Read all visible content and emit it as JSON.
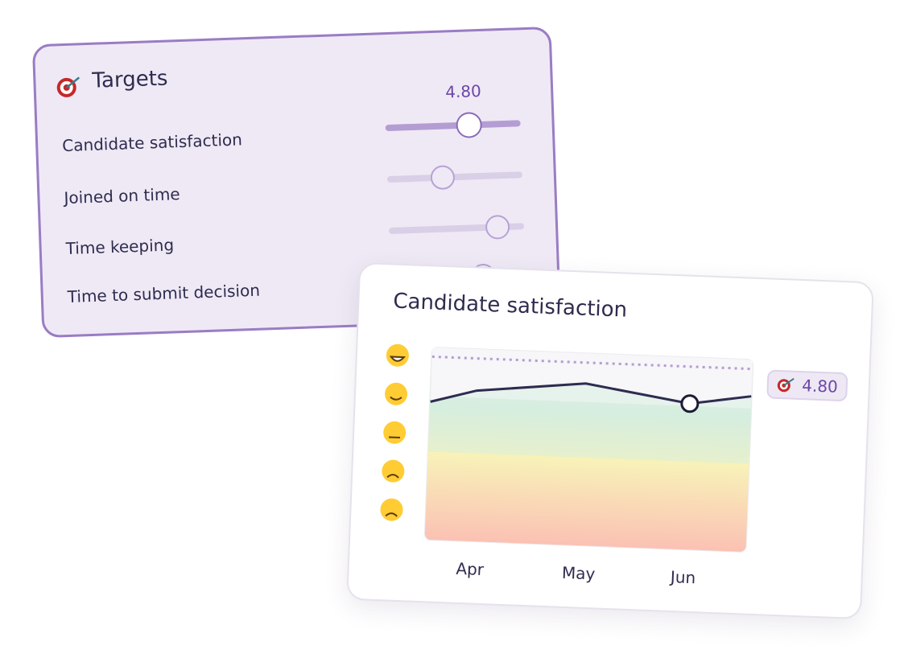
{
  "targets_card": {
    "title": "Targets",
    "slider_value": "4.80",
    "items": [
      "Candidate satisfaction",
      "Joined on time",
      "Time keeping",
      "Time to submit decision"
    ]
  },
  "chart_card": {
    "title": "Candidate satisfaction",
    "months": [
      "Apr",
      "May",
      "Jun"
    ],
    "target_badge": "4.80"
  }
}
